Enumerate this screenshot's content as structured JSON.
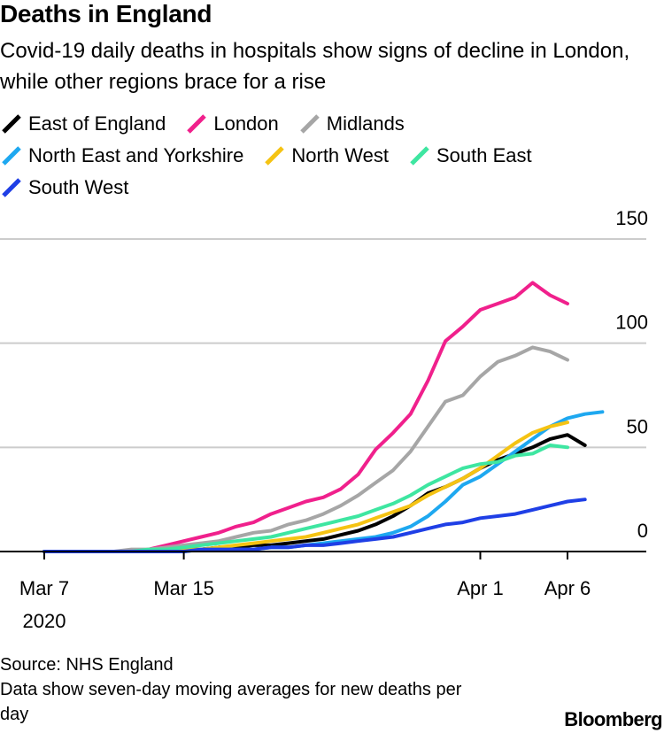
{
  "title": "Deaths in England",
  "subtitle": "Covid-19 daily deaths in hospitals show signs of decline in London, while other regions brace for a rise",
  "source": "Source: NHS England",
  "note": "Data show seven-day moving averages for new deaths per day",
  "brand": "Bloomberg",
  "chart_data": {
    "type": "line",
    "title": "Deaths in England",
    "subtitle": "Covid-19 daily deaths in hospitals show signs of decline in London, while other regions brace for a rise",
    "x_start": "2020-03-07",
    "x_end": "2020-04-06",
    "x_axis_max": "2020-04-10",
    "x_ticks": [
      {
        "date": "2020-03-07",
        "label": "Mar 7"
      },
      {
        "date": "2020-03-15",
        "label": "Mar 15"
      },
      {
        "date": "2020-04-01",
        "label": "Apr 1"
      },
      {
        "date": "2020-04-06",
        "label": "Apr 6"
      }
    ],
    "x_year_label": "2020",
    "y_ticks": [
      0,
      50,
      100,
      150
    ],
    "ylim": [
      0,
      150
    ],
    "grid": true,
    "legend_position": "top",
    "series": [
      {
        "name": "East of England",
        "color": "#000000",
        "values": [
          0,
          0,
          0,
          0,
          0,
          0,
          0,
          0,
          1,
          1,
          2,
          2,
          3,
          3,
          4,
          5,
          6,
          8,
          10,
          13,
          17,
          22,
          28,
          31,
          35,
          40,
          44,
          47,
          50,
          54,
          56,
          51
        ]
      },
      {
        "name": "London",
        "color": "#f0208c",
        "values": [
          0,
          0,
          0,
          0,
          0,
          0,
          1,
          3,
          5,
          7,
          9,
          12,
          14,
          18,
          21,
          24,
          26,
          30,
          37,
          49,
          57,
          66,
          82,
          101,
          108,
          116,
          119,
          122,
          129,
          123,
          119
        ]
      },
      {
        "name": "Midlands",
        "color": "#a6a6a6",
        "values": [
          0,
          0,
          0,
          0,
          0,
          1,
          1,
          2,
          3,
          4,
          5,
          7,
          9,
          10,
          13,
          15,
          18,
          22,
          27,
          33,
          39,
          48,
          60,
          72,
          75,
          84,
          91,
          94,
          98,
          96,
          92
        ]
      },
      {
        "name": "North East and Yorkshire",
        "color": "#1ea8f0",
        "values": [
          0,
          0,
          0,
          0,
          0,
          0,
          0,
          0,
          0,
          1,
          1,
          1,
          1,
          2,
          2,
          3,
          4,
          5,
          6,
          7,
          9,
          12,
          17,
          24,
          32,
          36,
          42,
          48,
          54,
          60,
          64,
          66,
          67
        ]
      },
      {
        "name": "North West",
        "color": "#f5c313",
        "values": [
          0,
          0,
          0,
          0,
          0,
          0,
          0,
          0,
          1,
          1,
          2,
          3,
          4,
          5,
          6,
          7,
          9,
          11,
          13,
          16,
          19,
          22,
          27,
          31,
          35,
          40,
          46,
          52,
          57,
          60,
          62
        ]
      },
      {
        "name": "South East",
        "color": "#3ee6a1",
        "values": [
          0,
          0,
          0,
          0,
          0,
          0,
          1,
          1,
          2,
          3,
          4,
          5,
          6,
          7,
          9,
          11,
          13,
          15,
          17,
          20,
          23,
          27,
          32,
          36,
          40,
          42,
          43,
          46,
          47,
          51,
          50
        ]
      },
      {
        "name": "South West",
        "color": "#1f3fe6",
        "values": [
          0,
          0,
          0,
          0,
          0,
          0,
          0,
          0,
          0,
          1,
          1,
          1,
          1,
          2,
          2,
          3,
          3,
          4,
          5,
          6,
          7,
          9,
          11,
          13,
          14,
          16,
          17,
          18,
          20,
          22,
          24,
          25
        ]
      }
    ]
  }
}
